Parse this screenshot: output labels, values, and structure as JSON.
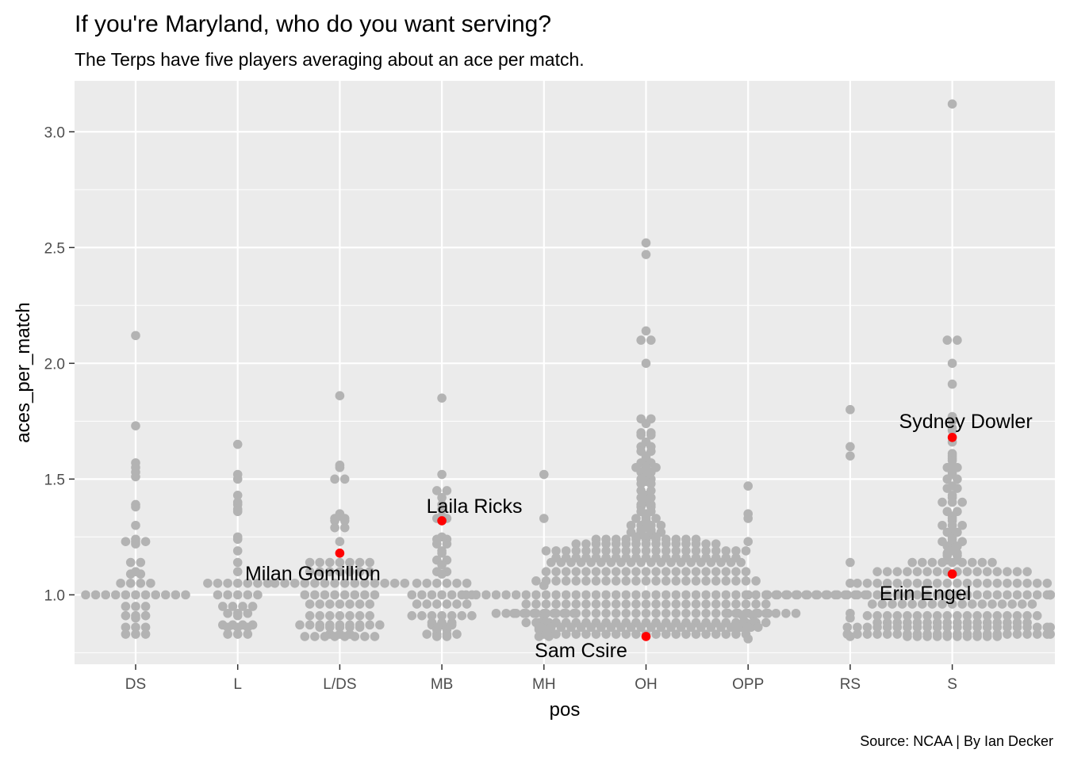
{
  "chart_data": {
    "type": "scatter",
    "title": "If you're Maryland, who do you want serving?",
    "subtitle": "The Terps have five players averaging about an ace per match.",
    "caption": "Source: NCAA | By Ian Decker",
    "xlabel": "pos",
    "ylabel": "aces_per_match",
    "categories": [
      "DS",
      "L",
      "L/DS",
      "MB",
      "MH",
      "OH",
      "OPP",
      "RS",
      "S"
    ],
    "ylim": [
      0.7,
      3.22
    ],
    "yticks": [
      1.0,
      1.5,
      2.0,
      2.5,
      3.0
    ],
    "ytick_labels": [
      "1.0",
      "1.5",
      "2.0",
      "2.5",
      "3.0"
    ],
    "grid": true,
    "colors": {
      "panel": "#ebebeb",
      "grid": "#ffffff",
      "points": "#b3b3b3",
      "highlight": "#ff0000"
    },
    "series": [
      {
        "color": "#b3b3b3",
        "values": {
          "DS": [
            2.12,
            1.73,
            1.57,
            1.55,
            1.53,
            1.51,
            1.39,
            1.38,
            1.3,
            1.24,
            1.23,
            1.23,
            1.23,
            1.22,
            1.14,
            1.14,
            1.1,
            1.09,
            1.09,
            1.05,
            1.05,
            1.05,
            1.05,
            1.0,
            1.0,
            1.0,
            1.0,
            1.0,
            1.0,
            1.0,
            1.0,
            1.0,
            1.0,
            1.0,
            0.95,
            0.95,
            0.95,
            0.91,
            0.91,
            0.91,
            0.9,
            0.86,
            0.86,
            0.86,
            0.83,
            0.83,
            0.83
          ],
          "L": [
            1.65,
            1.52,
            1.5,
            1.43,
            1.4,
            1.39,
            1.37,
            1.36,
            1.25,
            1.24,
            1.19,
            1.14,
            1.1,
            1.05,
            1.05,
            1.05,
            1.05,
            1.05,
            1.05,
            1.05,
            1.0,
            1.0,
            1.0,
            1.0,
            1.0,
            0.95,
            0.95,
            0.95,
            0.95,
            0.92,
            0.92,
            0.92,
            0.91,
            0.87,
            0.87,
            0.87,
            0.87,
            0.86,
            0.86,
            0.86,
            0.83,
            0.83,
            0.83
          ],
          "L/DS": [
            1.86,
            1.56,
            1.55,
            1.5,
            1.5,
            1.35,
            1.34,
            1.33,
            1.33,
            1.32,
            1.32,
            1.29,
            1.29,
            1.23,
            1.14,
            1.14,
            1.14,
            1.14,
            1.14,
            1.14,
            1.14,
            1.1,
            1.1,
            1.1,
            1.1,
            1.1,
            1.1,
            1.1,
            1.05,
            1.05,
            1.05,
            1.05,
            1.05,
            1.05,
            1.05,
            1.05,
            1.05,
            1.05,
            1.05,
            1.05,
            1.05,
            1.05,
            1.0,
            1.0,
            1.0,
            1.0,
            1.0,
            1.0,
            1.0,
            1.0,
            0.96,
            0.96,
            0.96,
            0.96,
            0.96,
            0.96,
            0.96,
            0.91,
            0.91,
            0.91,
            0.91,
            0.91,
            0.91,
            0.91,
            0.87,
            0.87,
            0.87,
            0.87,
            0.87,
            0.87,
            0.87,
            0.87,
            0.87,
            0.86,
            0.86,
            0.86,
            0.86,
            0.86,
            0.83,
            0.83,
            0.83,
            0.82,
            0.82,
            0.82,
            0.82,
            0.82,
            0.82,
            0.82,
            0.82
          ],
          "MB": [
            1.85,
            1.52,
            1.45,
            1.45,
            1.42,
            1.39,
            1.37,
            1.34,
            1.33,
            1.33,
            1.32,
            1.25,
            1.24,
            1.24,
            1.22,
            1.22,
            1.19,
            1.18,
            1.15,
            1.15,
            1.13,
            1.1,
            1.1,
            1.09,
            1.05,
            1.05,
            1.05,
            1.05,
            1.05,
            1.05,
            1.0,
            1.0,
            1.0,
            1.0,
            1.0,
            1.0,
            1.0,
            0.96,
            0.96,
            0.96,
            0.96,
            0.96,
            0.96,
            0.91,
            0.91,
            0.91,
            0.91,
            0.91,
            0.91,
            0.91,
            0.88,
            0.88,
            0.88,
            0.87,
            0.87,
            0.87,
            0.86,
            0.86,
            0.85,
            0.85,
            0.83,
            0.83,
            0.83,
            0.83,
            0.82,
            0.82
          ],
          "MH": [
            1.52,
            1.33,
            1.04,
            0.92,
            0.92,
            0.92,
            0.92,
            0.92,
            0.92,
            0.92,
            0.91,
            0.88,
            0.88,
            0.87,
            0.86,
            0.86,
            0.85,
            0.85,
            0.83,
            0.82,
            0.82
          ],
          "OH": [
            2.52,
            2.47,
            2.14,
            2.1,
            2.1,
            2.0,
            1.76,
            1.76,
            1.74,
            1.7,
            1.7,
            1.69,
            1.69,
            1.66,
            1.64,
            1.64,
            1.62,
            1.62,
            1.6,
            1.59,
            1.58,
            1.57,
            1.57,
            1.55,
            1.55,
            1.55,
            1.54,
            1.53,
            1.53,
            1.51,
            1.5,
            1.5,
            1.49,
            1.48,
            1.48,
            1.45,
            1.45,
            1.43,
            1.42,
            1.42,
            1.4,
            1.39,
            1.39,
            1.38,
            1.38,
            1.36,
            1.36,
            1.35,
            1.34,
            1.33,
            1.33,
            1.33,
            1.32,
            1.31,
            1.3,
            1.3,
            1.3,
            1.3,
            1.29,
            1.28,
            1.28,
            1.27,
            1.27,
            1.27,
            1.27,
            1.26,
            1.26,
            1.25,
            1.25,
            1.25,
            1.24,
            1.24,
            1.24,
            1.24,
            1.24,
            1.24,
            1.24,
            1.24,
            1.24,
            1.24,
            1.24,
            1.22,
            1.22,
            1.22,
            1.22,
            1.22,
            1.22,
            1.22,
            1.22,
            1.22,
            1.22,
            1.22,
            1.22,
            1.22,
            1.22,
            1.22,
            1.19,
            1.19,
            1.19,
            1.19,
            1.19,
            1.19,
            1.19,
            1.19,
            1.19,
            1.19,
            1.19,
            1.19,
            1.19,
            1.19,
            1.19,
            1.19,
            1.19,
            1.19,
            1.19,
            1.19,
            1.19,
            1.16,
            1.16,
            1.16,
            1.16,
            1.16,
            1.16,
            1.16,
            1.16,
            1.16,
            1.16,
            1.16,
            1.16,
            1.16,
            1.16,
            1.16,
            1.16,
            1.16,
            1.16,
            1.16,
            1.14,
            1.14,
            1.14,
            1.14,
            1.14,
            1.14,
            1.14,
            1.14,
            1.14,
            1.14,
            1.14,
            1.14,
            1.14,
            1.14,
            1.14,
            1.14,
            1.14,
            1.14,
            1.14,
            1.14,
            1.1,
            1.1,
            1.1,
            1.1,
            1.1,
            1.1,
            1.1,
            1.1,
            1.1,
            1.1,
            1.1,
            1.1,
            1.1,
            1.1,
            1.1,
            1.1,
            1.1,
            1.1,
            1.1,
            1.1,
            1.1,
            1.06,
            1.06,
            1.06,
            1.06,
            1.06,
            1.06,
            1.06,
            1.06,
            1.06,
            1.06,
            1.06,
            1.06,
            1.06,
            1.06,
            1.06,
            1.06,
            1.06,
            1.06,
            1.06,
            1.06,
            1.06,
            1.06,
            1.06,
            1.0,
            1.0,
            1.0,
            1.0,
            1.0,
            1.0,
            1.0,
            1.0,
            1.0,
            1.0,
            1.0,
            1.0,
            1.0,
            1.0,
            1.0,
            1.0,
            1.0,
            1.0,
            1.0,
            1.0,
            1.0,
            1.0,
            1.0,
            1.0,
            1.0,
            1.0,
            1.0,
            1.0,
            1.0,
            1.0,
            1.0,
            1.0,
            1.0,
            1.0,
            1.0,
            1.0,
            1.0,
            0.96,
            0.96,
            0.96,
            0.96,
            0.96,
            0.96,
            0.96,
            0.96,
            0.96,
            0.96,
            0.96,
            0.96,
            0.96,
            0.96,
            0.96,
            0.96,
            0.96,
            0.96,
            0.96,
            0.96,
            0.96,
            0.96,
            0.96,
            0.96,
            0.96,
            0.92,
            0.92,
            0.92,
            0.92,
            0.92,
            0.92,
            0.92,
            0.92,
            0.92,
            0.92,
            0.92,
            0.92,
            0.92,
            0.92,
            0.92,
            0.92,
            0.92,
            0.92,
            0.92,
            0.92,
            0.92,
            0.92,
            0.92,
            0.92,
            0.92,
            0.92,
            0.92,
            0.92,
            0.92,
            0.92,
            0.92,
            0.88,
            0.88,
            0.88,
            0.88,
            0.88,
            0.88,
            0.88,
            0.88,
            0.88,
            0.88,
            0.88,
            0.88,
            0.88,
            0.88,
            0.88,
            0.88,
            0.88,
            0.88,
            0.88,
            0.88,
            0.88,
            0.88,
            0.88,
            0.88,
            0.88,
            0.86,
            0.86,
            0.86,
            0.86,
            0.86,
            0.86,
            0.86,
            0.86,
            0.86,
            0.86,
            0.86,
            0.86,
            0.86,
            0.86,
            0.86,
            0.86,
            0.86,
            0.86,
            0.86,
            0.86,
            0.86,
            0.86,
            0.83,
            0.83,
            0.83,
            0.83,
            0.83,
            0.83,
            0.83,
            0.83,
            0.83,
            0.83,
            0.83,
            0.83,
            0.83,
            0.83,
            0.83,
            0.83,
            0.83,
            0.83,
            0.83,
            0.83,
            0.83
          ],
          "OPP": [
            1.47,
            1.35,
            1.33,
            1.23,
            1.0,
            0.92,
            0.92,
            0.92,
            0.92,
            0.92,
            0.91,
            0.91,
            0.88,
            0.88,
            0.86,
            0.86,
            0.86,
            0.81
          ],
          "RS": [
            1.8,
            1.64,
            1.6,
            1.14,
            1.05,
            1.0,
            1.0,
            1.0,
            1.0,
            0.92,
            0.9,
            0.82
          ],
          "S": [
            3.12,
            2.1,
            2.1,
            2.0,
            1.91,
            1.77,
            1.75,
            1.72,
            1.71,
            1.66,
            1.61,
            1.6,
            1.59,
            1.58,
            1.56,
            1.55,
            1.55,
            1.53,
            1.52,
            1.5,
            1.5,
            1.47,
            1.46,
            1.46,
            1.43,
            1.42,
            1.4,
            1.4,
            1.4,
            1.36,
            1.36,
            1.34,
            1.33,
            1.32,
            1.3,
            1.3,
            1.3,
            1.28,
            1.27,
            1.27,
            1.25,
            1.24,
            1.23,
            1.23,
            1.23,
            1.21,
            1.21,
            1.2,
            1.19,
            1.18,
            1.18,
            1.17,
            1.17,
            1.15,
            1.15,
            1.14,
            1.14,
            1.14,
            1.14,
            1.14,
            1.14,
            1.14,
            1.14,
            1.14,
            1.1,
            1.1,
            1.1,
            1.1,
            1.1,
            1.1,
            1.1,
            1.1,
            1.1,
            1.1,
            1.1,
            1.1,
            1.1,
            1.1,
            1.1,
            1.1,
            1.05,
            1.05,
            1.05,
            1.05,
            1.05,
            1.05,
            1.05,
            1.05,
            1.05,
            1.05,
            1.05,
            1.05,
            1.05,
            1.05,
            1.05,
            1.05,
            1.05,
            1.05,
            1.05,
            1.05,
            1.0,
            1.0,
            1.0,
            1.0,
            1.0,
            1.0,
            1.0,
            1.0,
            1.0,
            1.0,
            1.0,
            1.0,
            1.0,
            1.0,
            1.0,
            1.0,
            1.0,
            1.0,
            1.0,
            1.0,
            1.0,
            1.0,
            1.0,
            1.0,
            1.0,
            1.0,
            1.0,
            1.0,
            1.0,
            1.0,
            1.0,
            1.0,
            1.0,
            1.0,
            1.0,
            1.0,
            1.0,
            1.0,
            0.96,
            0.96,
            0.96,
            0.96,
            0.96,
            0.96,
            0.96,
            0.96,
            0.96,
            0.96,
            0.96,
            0.96,
            0.96,
            0.96,
            0.96,
            0.96,
            0.96,
            0.91,
            0.91,
            0.91,
            0.91,
            0.91,
            0.91,
            0.91,
            0.91,
            0.91,
            0.91,
            0.91,
            0.91,
            0.91,
            0.91,
            0.91,
            0.91,
            0.91,
            0.91,
            0.88,
            0.88,
            0.88,
            0.88,
            0.88,
            0.88,
            0.88,
            0.88,
            0.88,
            0.88,
            0.88,
            0.88,
            0.88,
            0.88,
            0.88,
            0.88,
            0.86,
            0.86,
            0.86,
            0.86,
            0.86,
            0.86,
            0.86,
            0.86,
            0.86,
            0.86,
            0.86,
            0.86,
            0.86,
            0.86,
            0.86,
            0.86,
            0.86,
            0.86,
            0.86,
            0.86,
            0.86,
            0.86,
            0.83,
            0.83,
            0.83,
            0.83,
            0.83,
            0.83,
            0.83,
            0.83,
            0.83,
            0.83,
            0.83,
            0.83,
            0.83,
            0.83,
            0.83,
            0.83,
            0.83,
            0.83,
            0.83,
            0.83,
            0.83,
            0.83,
            0.82,
            0.82,
            0.82,
            0.82,
            0.82,
            0.82,
            0.82,
            0.82,
            0.82,
            0.82
          ]
        }
      }
    ],
    "highlights": [
      {
        "label": "Milan Gomillion",
        "pos": "L/DS",
        "value": 1.18
      },
      {
        "label": "Laila Ricks",
        "pos": "MB",
        "value": 1.32
      },
      {
        "label": "Sam Csire",
        "pos": "OH",
        "value": 0.82
      },
      {
        "label": "Sydney Dowler",
        "pos": "S",
        "value": 1.68
      },
      {
        "label": "Erin Engel",
        "pos": "S",
        "value": 1.09
      }
    ]
  }
}
